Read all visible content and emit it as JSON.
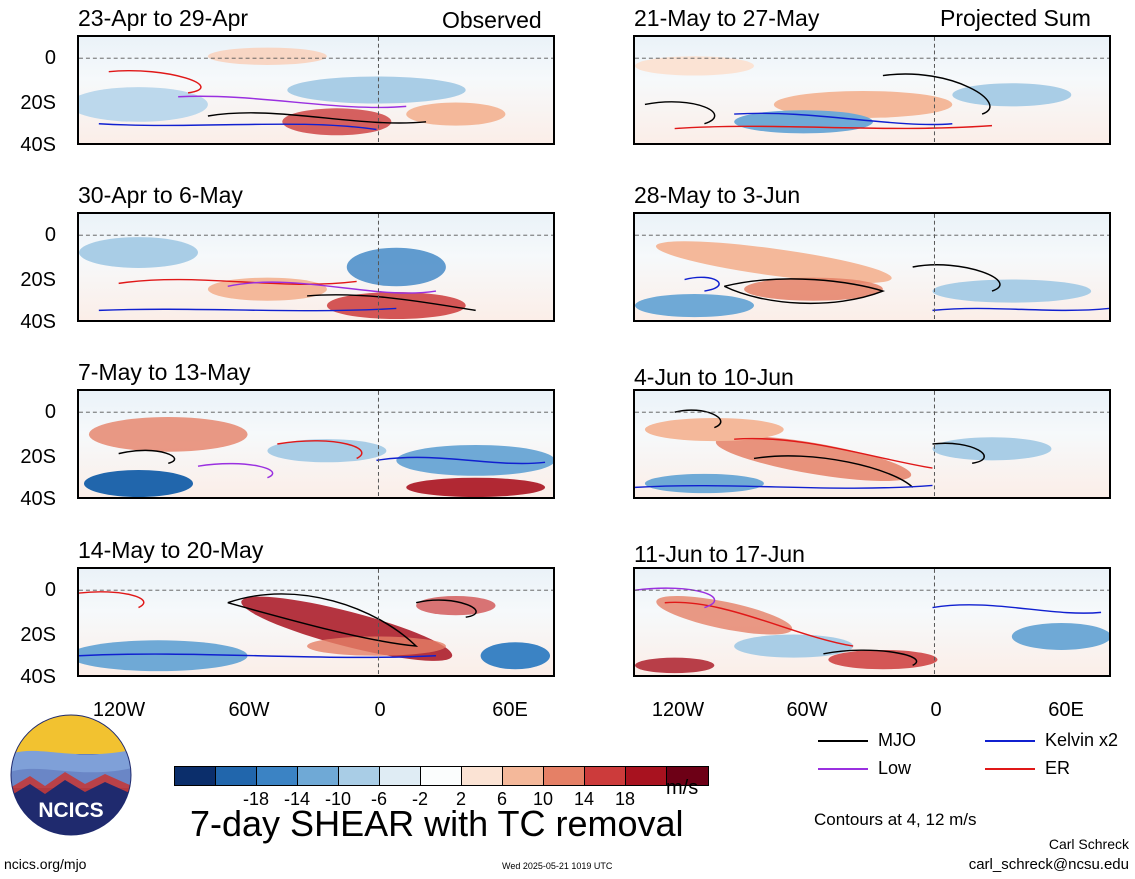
{
  "labels": {
    "observed": "Observed",
    "projected": "Projected Sum",
    "units": "m/s",
    "main_title": "7-day SHEAR with TC removal",
    "contours_note": "Contours at 4, 12 m/s",
    "author": "Carl Schreck",
    "email": "carl_schreck@ncsu.edu",
    "url": "ncics.org/mjo",
    "timestamp": "Wed 2025-05-21 1019 UTC",
    "logo_text": "NCICS"
  },
  "panels_left": [
    "23-Apr to 29-Apr",
    "30-Apr to 6-May",
    "7-May to 13-May",
    "14-May to 20-May"
  ],
  "panels_right": [
    "21-May to 27-May",
    "28-May to 3-Jun",
    "4-Jun to 10-Jun",
    "11-Jun to 17-Jun"
  ],
  "y_ticks": [
    "0",
    "20S",
    "40S"
  ],
  "x_ticks": [
    "120W",
    "60W",
    "0",
    "60E"
  ],
  "legend": [
    {
      "label": "MJO",
      "color": "#000000"
    },
    {
      "label": "Kelvin x2",
      "color": "#1020d0"
    },
    {
      "label": "Low",
      "color": "#9a30e0"
    },
    {
      "label": "ER",
      "color": "#e01818"
    }
  ],
  "colorbar": {
    "colors": [
      "#0b2e6b",
      "#2166ac",
      "#3b83c4",
      "#6fa9d6",
      "#a9cde6",
      "#dfecf4",
      "#fbfdfd",
      "#fbe3d4",
      "#f4b89a",
      "#e58066",
      "#cc3b3b",
      "#a8121f",
      "#6d0016"
    ],
    "tick_labels": [
      "-18",
      "-14",
      "-10",
      "-6",
      "-2",
      "2",
      "6",
      "10",
      "14",
      "18"
    ]
  }
}
